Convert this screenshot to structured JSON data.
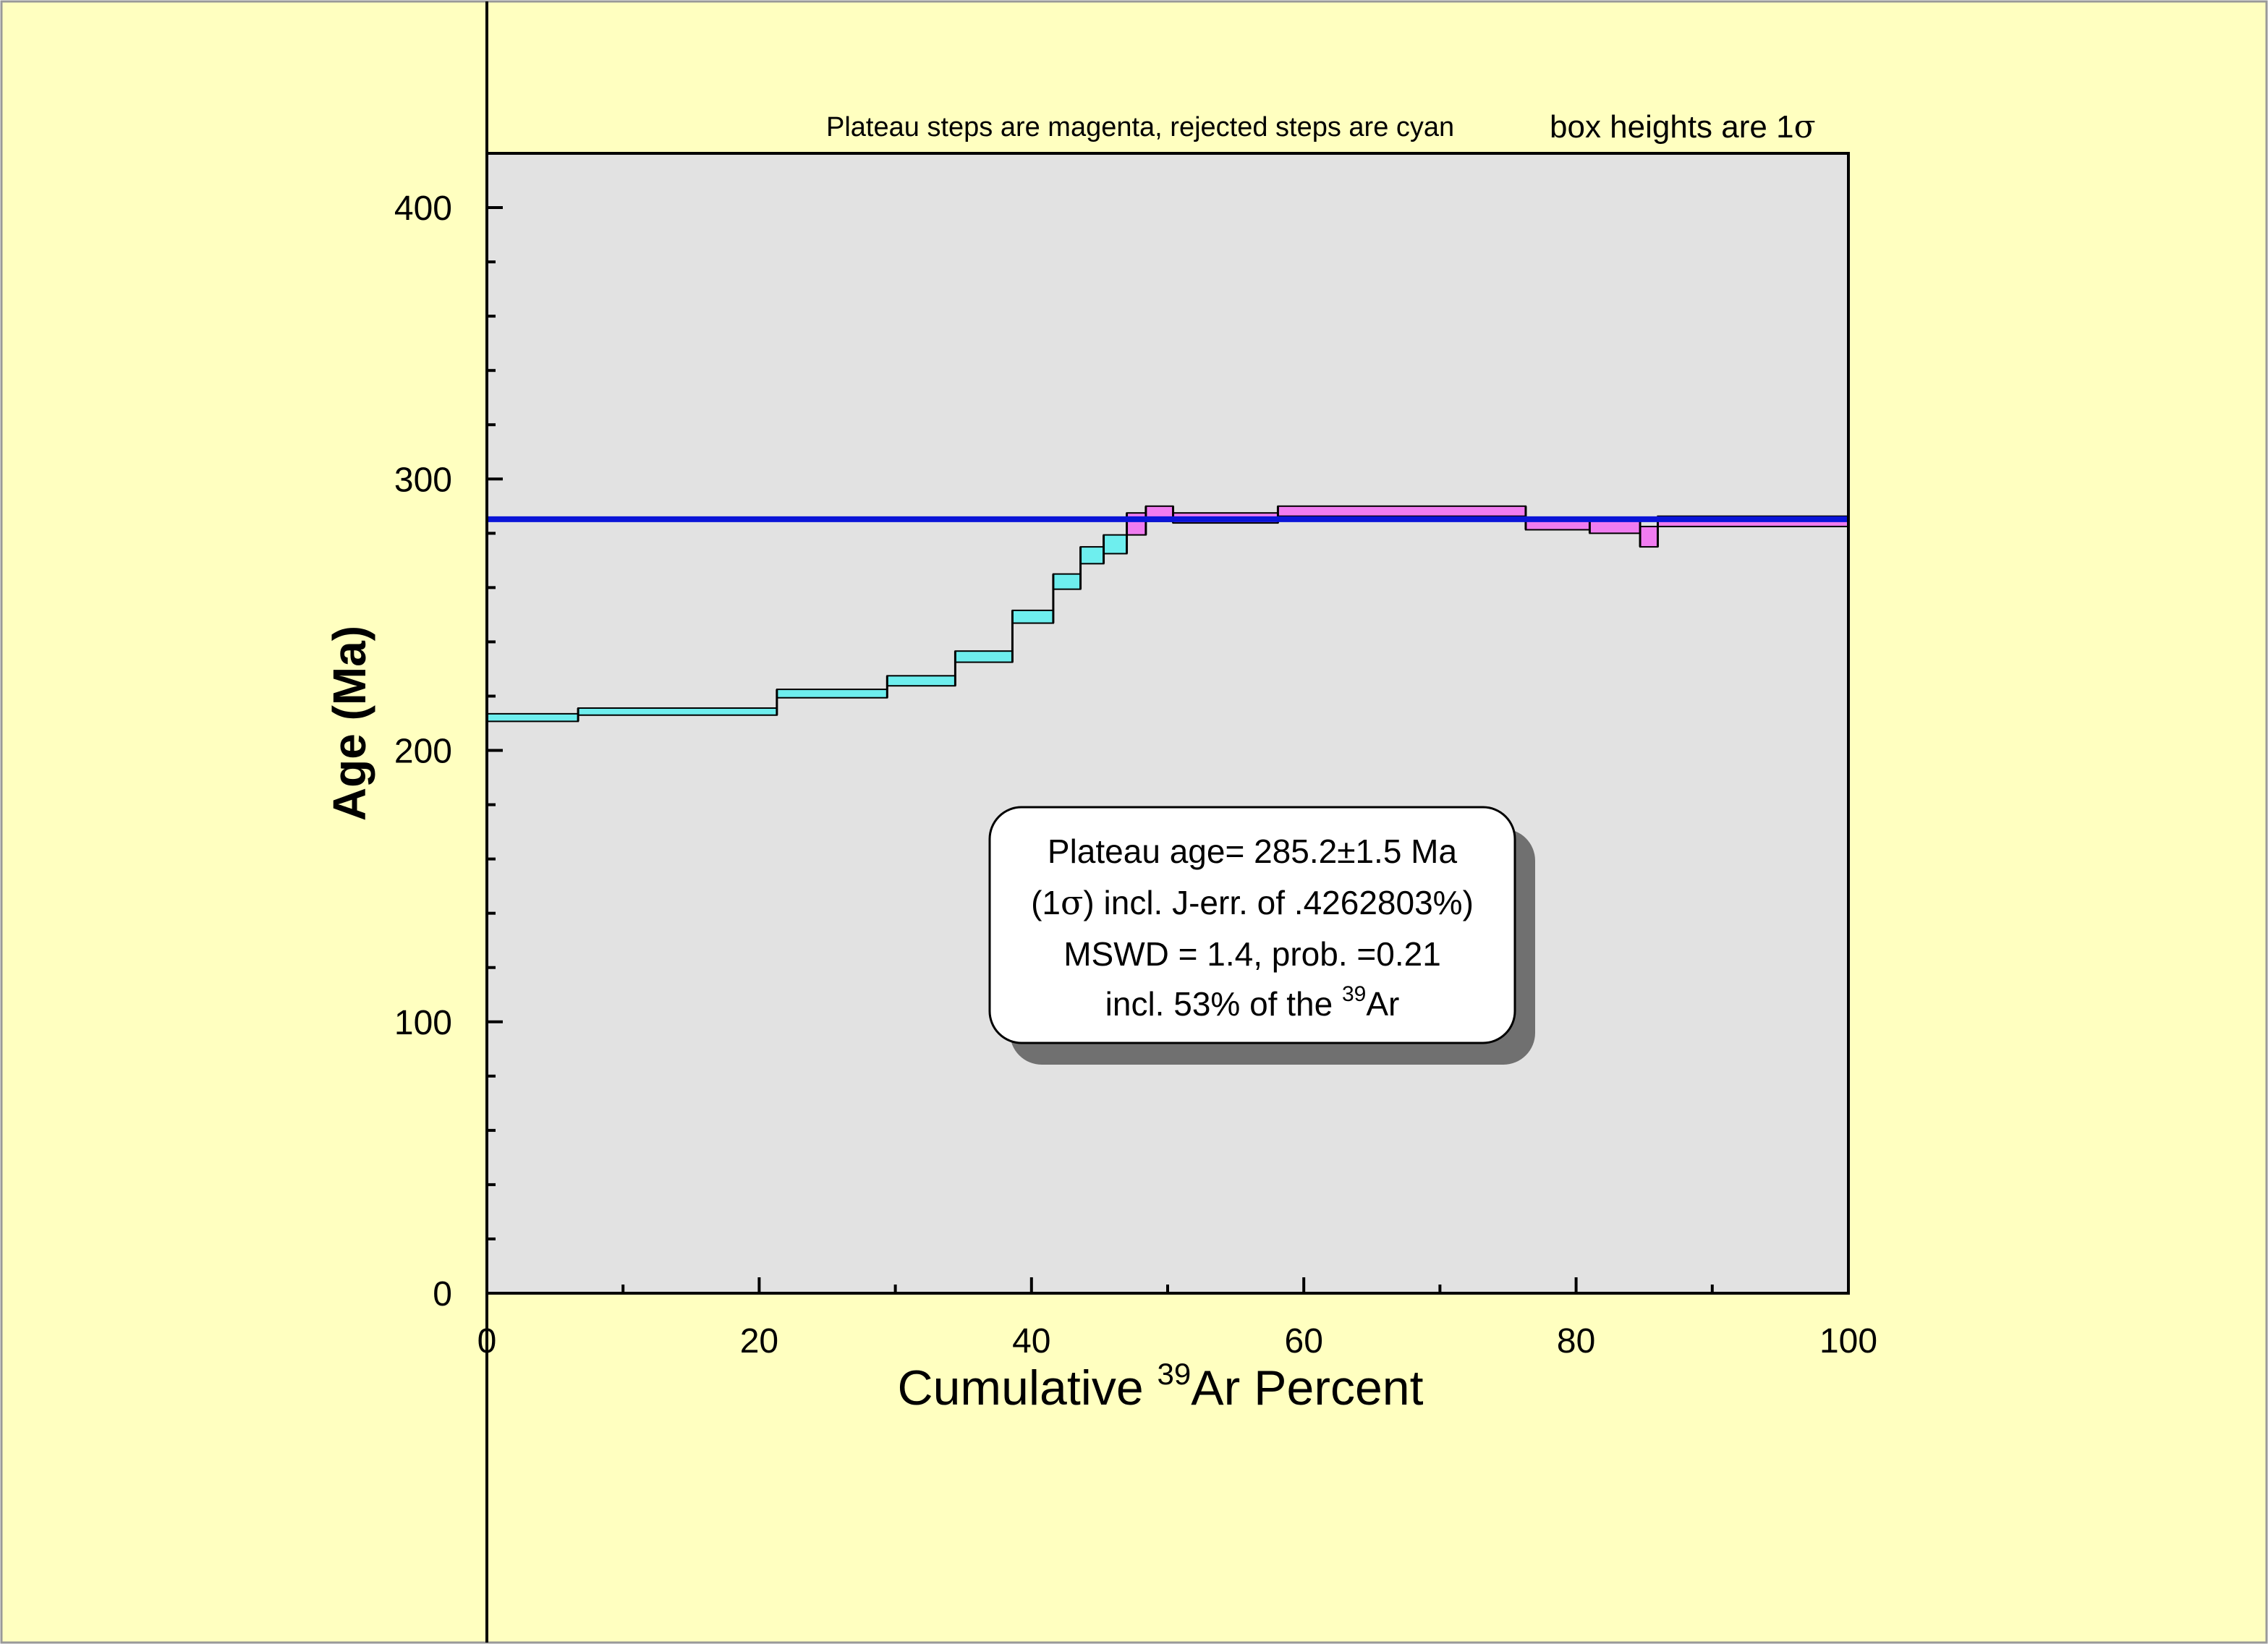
{
  "chart_data": {
    "type": "step",
    "xlabel_pre": "Cumulative ",
    "xlabel_sup": "39",
    "xlabel_post": "Ar Percent",
    "ylabel": "Age (Ma)",
    "xlim": [
      0,
      100
    ],
    "ylim": [
      0,
      420
    ],
    "x_ticks": [
      0,
      20,
      40,
      60,
      80,
      100
    ],
    "y_ticks": [
      0,
      100,
      200,
      300,
      400
    ],
    "note_left": "Plateau steps are magenta, rejected steps are cyan",
    "note_right_pre": "box heights are 1",
    "note_right_sigma": "σ",
    "plateau_age": 285.2,
    "info_box": {
      "line1": "Plateau age= 285.2±1.5 Ma",
      "line2_pre": "(1",
      "line2_sigma": "σ",
      "line2_post": ") incl. J-err. of .4262803%)",
      "line3": "MSWD = 1.4, prob. =0.21",
      "line4_pre": "incl. 53% of the ",
      "line4_sup": "39",
      "line4_post": "Ar"
    },
    "steps": [
      {
        "x0": 0.0,
        "x1": 6.7,
        "ylo": 210.7,
        "yhi": 213.5,
        "plateau": false
      },
      {
        "x0": 6.7,
        "x1": 21.3,
        "ylo": 213.0,
        "yhi": 215.6,
        "plateau": false
      },
      {
        "x0": 21.3,
        "x1": 29.4,
        "ylo": 219.4,
        "yhi": 222.5,
        "plateau": false
      },
      {
        "x0": 29.4,
        "x1": 34.4,
        "ylo": 223.8,
        "yhi": 227.5,
        "plateau": false
      },
      {
        "x0": 34.4,
        "x1": 38.6,
        "ylo": 232.5,
        "yhi": 236.6,
        "plateau": false
      },
      {
        "x0": 38.6,
        "x1": 41.6,
        "ylo": 246.9,
        "yhi": 251.6,
        "plateau": false
      },
      {
        "x0": 41.6,
        "x1": 43.6,
        "ylo": 259.4,
        "yhi": 265.0,
        "plateau": false
      },
      {
        "x0": 43.6,
        "x1": 45.3,
        "ylo": 268.8,
        "yhi": 275.0,
        "plateau": false
      },
      {
        "x0": 45.3,
        "x1": 47.0,
        "ylo": 272.5,
        "yhi": 279.4,
        "plateau": false
      },
      {
        "x0": 47.0,
        "x1": 48.4,
        "ylo": 279.4,
        "yhi": 287.5,
        "plateau": true
      },
      {
        "x0": 48.4,
        "x1": 50.4,
        "ylo": 284.4,
        "yhi": 290.0,
        "plateau": true
      },
      {
        "x0": 50.4,
        "x1": 58.1,
        "ylo": 283.8,
        "yhi": 287.5,
        "plateau": true
      },
      {
        "x0": 58.1,
        "x1": 76.3,
        "ylo": 286.3,
        "yhi": 290.0,
        "plateau": true
      },
      {
        "x0": 76.3,
        "x1": 81.0,
        "ylo": 281.3,
        "yhi": 285.6,
        "plateau": true
      },
      {
        "x0": 81.0,
        "x1": 84.7,
        "ylo": 280.0,
        "yhi": 285.0,
        "plateau": true
      },
      {
        "x0": 84.7,
        "x1": 86.0,
        "ylo": 275.0,
        "yhi": 282.5,
        "plateau": true
      },
      {
        "x0": 86.0,
        "x1": 100.0,
        "ylo": 282.5,
        "yhi": 286.3,
        "plateau": true
      }
    ]
  },
  "colors": {
    "page_bg": "#ffffc0",
    "plot_bg": "#e2e2e2",
    "plateau_fill": "#f07cf0",
    "rejected_fill": "#6eeeee",
    "plateau_line": "#0a14d8",
    "shadow": "#707070"
  }
}
